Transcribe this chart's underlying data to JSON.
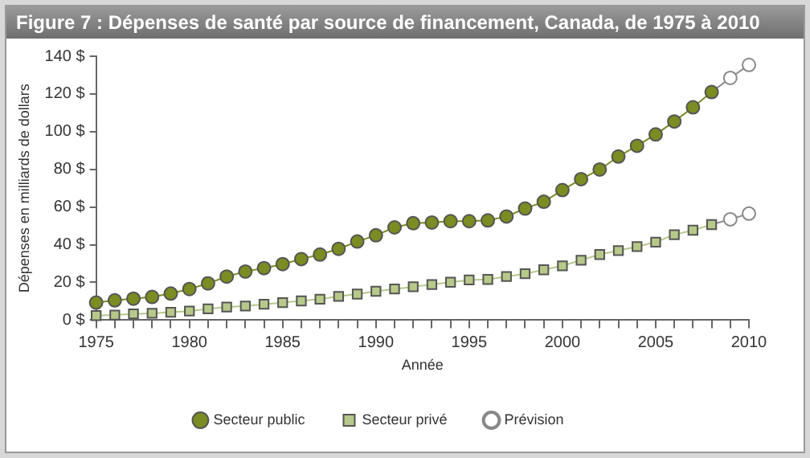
{
  "chart_data": {
    "type": "line",
    "title": "Figure 7 : Dépenses de santé par source de financement, Canada, de 1975 à 2010",
    "xlabel": "Année",
    "ylabel": "Dépenses en milliards de dollars",
    "x": [
      1975,
      1976,
      1977,
      1978,
      1979,
      1980,
      1981,
      1982,
      1983,
      1984,
      1985,
      1986,
      1987,
      1988,
      1989,
      1990,
      1991,
      1992,
      1993,
      1994,
      1995,
      1996,
      1997,
      1998,
      1999,
      2000,
      2001,
      2002,
      2003,
      2004,
      2005,
      2006,
      2007,
      2008
    ],
    "series": [
      {
        "name": "Secteur public",
        "color": "#7a8c22",
        "marker": "circle",
        "values": [
          9.3,
          10.5,
          11.4,
          12.3,
          14.1,
          16.5,
          19.5,
          23.1,
          25.8,
          27.6,
          29.7,
          32.4,
          34.8,
          37.8,
          41.7,
          45,
          49.2,
          51.4,
          51.8,
          52.5,
          52.5,
          52.9,
          55,
          59.2,
          62.8,
          69,
          74.8,
          79.9,
          86.8,
          92.5,
          98.5,
          105.4,
          112.9,
          121
        ]
      },
      {
        "name": "Secteur privé",
        "color": "#b7c98a",
        "marker": "square",
        "values": [
          2.4,
          2.7,
          3.3,
          3.6,
          4.2,
          4.8,
          6,
          6.9,
          7.5,
          8.4,
          9.3,
          10.2,
          11.1,
          12.6,
          13.8,
          15.3,
          16.5,
          17.7,
          18.9,
          20.1,
          21.3,
          21.6,
          23.1,
          24.6,
          26.7,
          28.8,
          31.8,
          34.8,
          36.9,
          39,
          41.4,
          45.3,
          47.7,
          50.7
        ]
      },
      {
        "name": "Prévision",
        "color": "#888888",
        "marker": "circle",
        "x": [
          2008,
          2009,
          2010
        ],
        "values": [
          121,
          128.5,
          135.4
        ]
      },
      {
        "color": "#888888",
        "marker": "circle",
        "x": [
          2008,
          2009,
          2010
        ],
        "values": [
          50.7,
          53.5,
          56.5
        ]
      }
    ],
    "xlim": [
      1975,
      2010
    ],
    "xticks": [
      1975,
      {
        "value": 1976,
        "label": null
      },
      {
        "value": 1977,
        "label": null
      },
      {
        "value": 1978,
        "label": null
      },
      {
        "value": 1979,
        "label": null
      },
      1980,
      {
        "value": 1981,
        "label": null
      },
      {
        "value": 1982,
        "label": null
      },
      {
        "value": 1983,
        "label": null
      },
      {
        "value": 1984,
        "label": null
      },
      1985,
      {
        "value": 1986,
        "label": null
      },
      {
        "value": 1987,
        "label": null
      },
      {
        "value": 1988,
        "label": null
      },
      {
        "value": 1989,
        "label": null
      },
      1990,
      {
        "value": 1991,
        "label": null
      },
      {
        "value": 1992,
        "label": null
      },
      {
        "value": 1993,
        "label": null
      },
      {
        "value": 1994,
        "label": null
      },
      1995,
      {
        "value": 1996,
        "label": null
      },
      {
        "value": 1997,
        "label": null
      },
      {
        "value": 1998,
        "label": null
      },
      {
        "value": 1999,
        "label": null
      },
      2000,
      {
        "value": 2001,
        "label": null
      },
      {
        "value": 2002,
        "label": null
      },
      {
        "value": 2003,
        "label": null
      },
      {
        "value": 2004,
        "label": null
      },
      2005,
      {
        "value": 2006,
        "label": null
      },
      {
        "value": 2007,
        "label": null
      },
      {
        "value": 2008,
        "label": null
      },
      {
        "value": 2009,
        "label": null
      },
      2010
    ],
    "ylim": [
      0,
      140
    ],
    "yticks": [
      {
        "value": 0,
        "label": "0 $"
      },
      {
        "value": 20,
        "label": "20 $"
      },
      {
        "value": 40,
        "label": "40 $"
      },
      {
        "value": 60,
        "label": "60 $"
      },
      {
        "value": 80,
        "label": "80 $"
      },
      {
        "value": 100,
        "label": "100 $"
      },
      {
        "value": 120,
        "label": "120 $"
      },
      {
        "value": 140,
        "label": "140 $"
      }
    ],
    "grid": false,
    "legend": "bottom",
    "line_style": "solid"
  }
}
